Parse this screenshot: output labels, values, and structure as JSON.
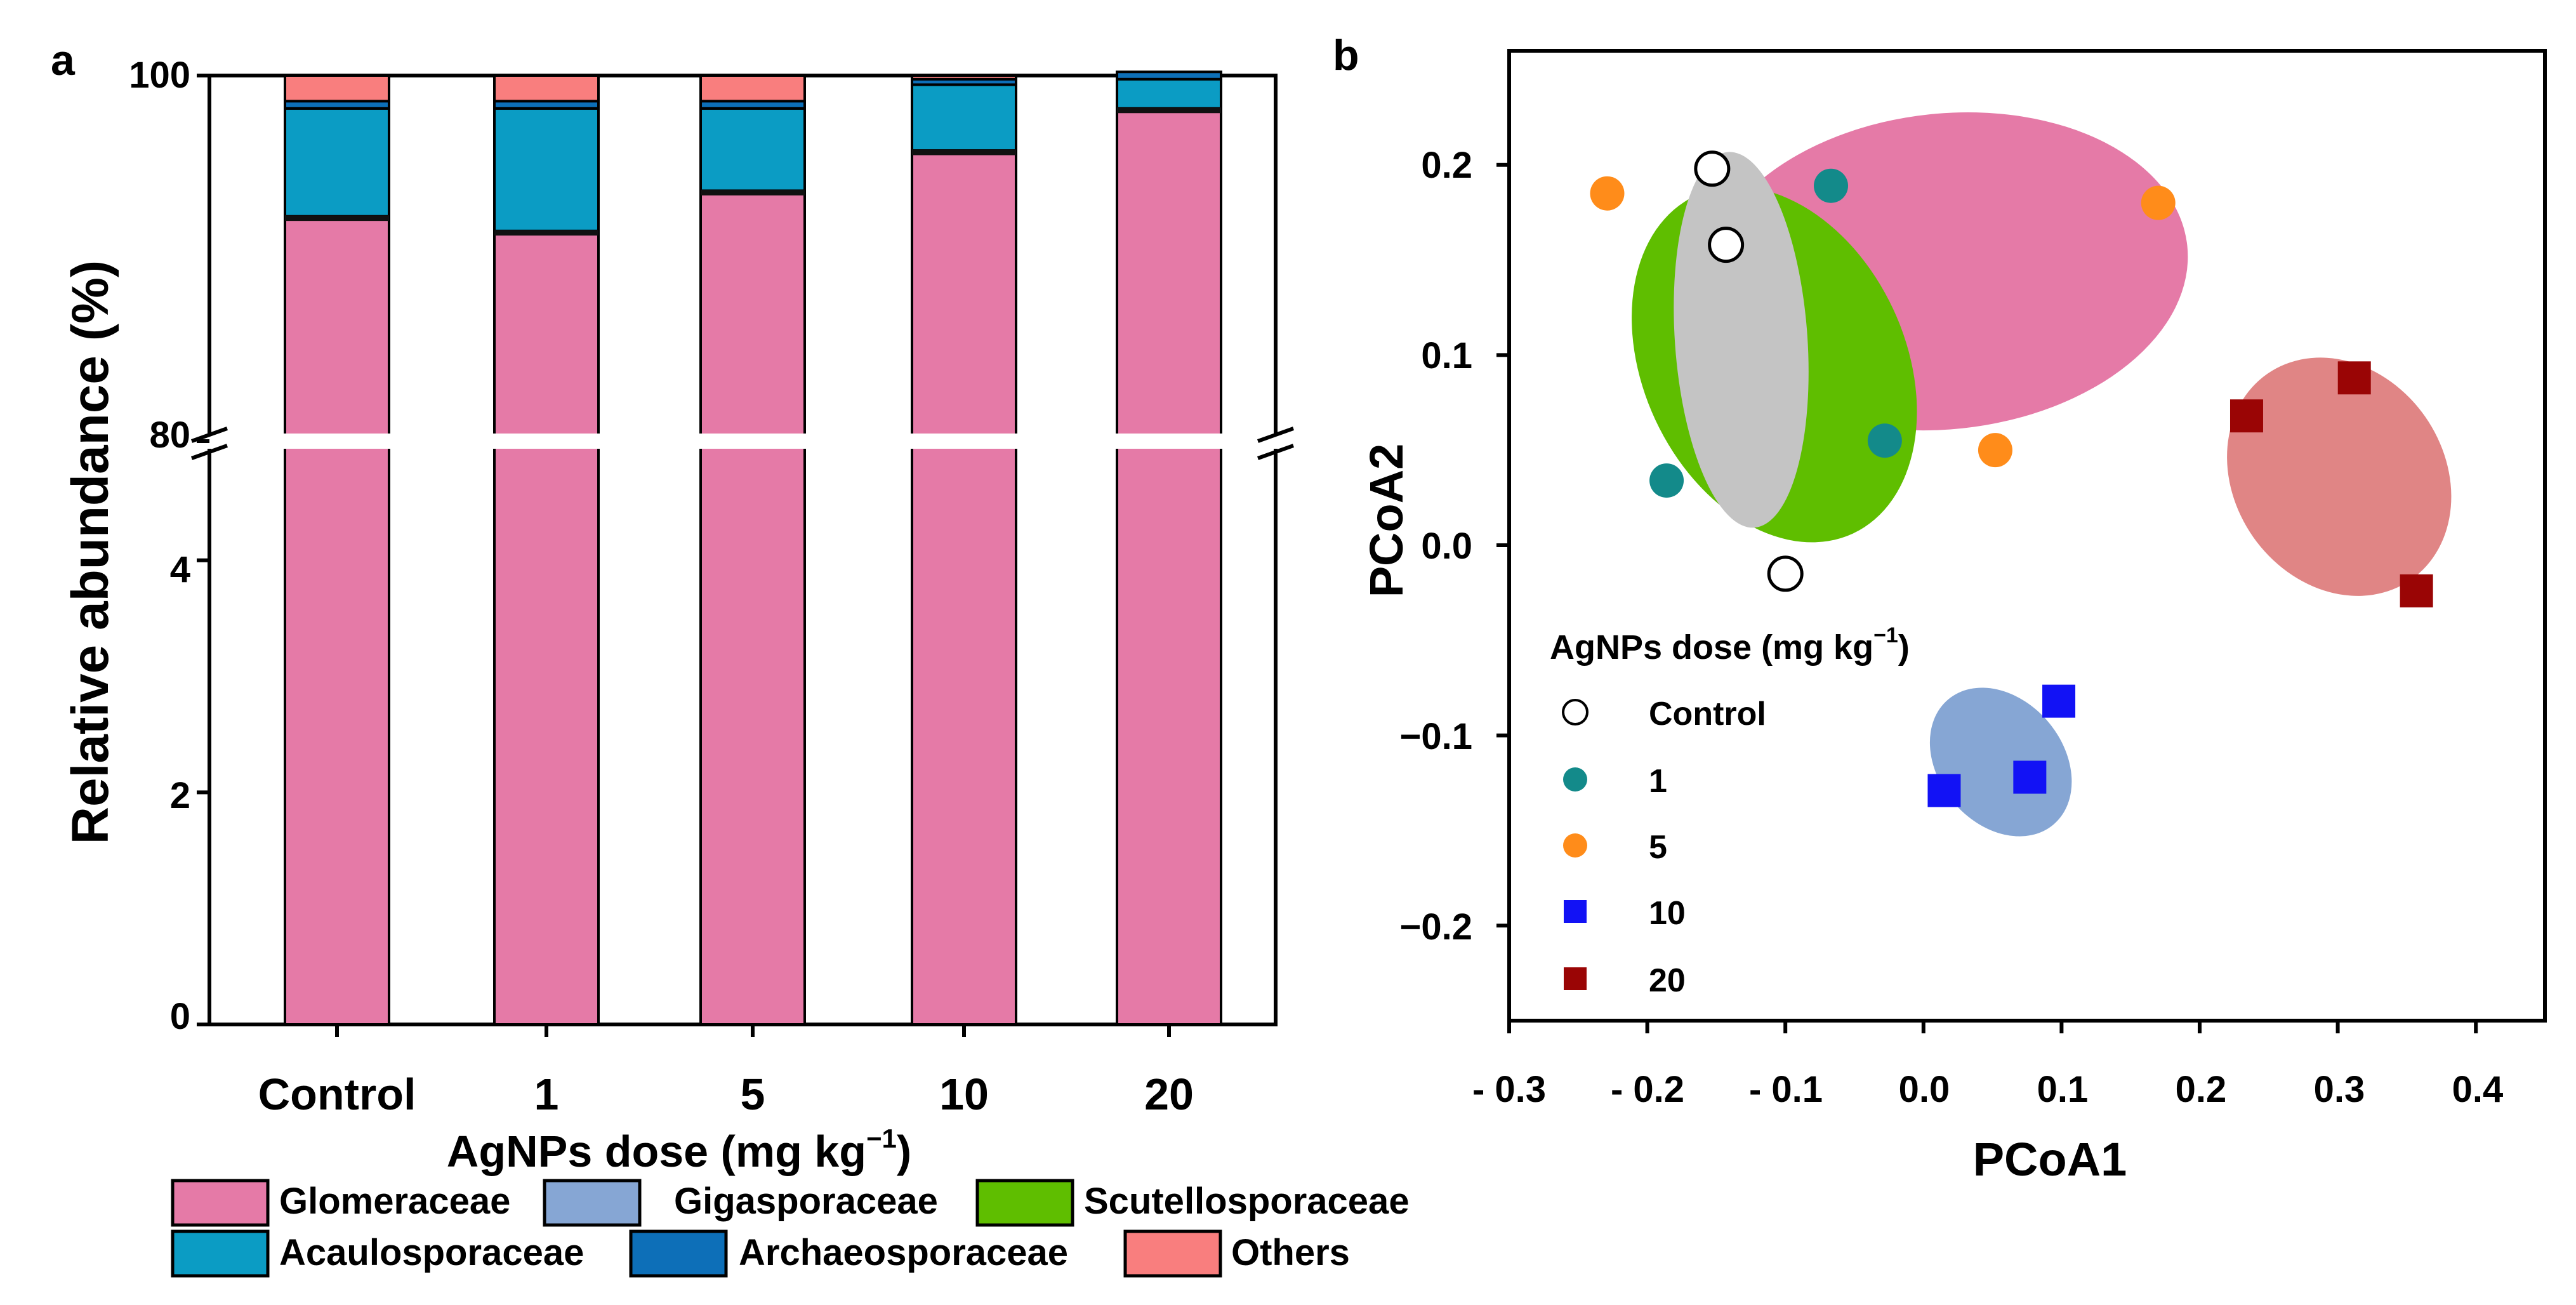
{
  "colors": {
    "Glomeraceae": "#E57AA7",
    "Gigasporaceae": "#86A6D4",
    "Scutellosporaceae": "#5FBE00",
    "Acaulosporaceae": "#0B9CC4",
    "Archaeosporaceae": "#0D6FB8",
    "Others": "#F97E7E",
    "ell_pink": "#E57AA7",
    "ell_green": "#5FBE00",
    "ell_gray": "#C4C4C4",
    "ell_red": "#E08585",
    "ell_blue": "#86A6D4",
    "Control": "#FFFFFF",
    "dose1": "#138A8A",
    "dose5": "#FF8C1A",
    "dose10": "#1212F5",
    "dose20": "#9A0505"
  },
  "chart_data": [
    {
      "type": "bar",
      "panel_label": "a",
      "stacked": true,
      "broken_axis": true,
      "xlabel": "AgNPs dose (mg kg",
      "xlabel_sup": "−1",
      "xlabel_close": ")",
      "ylabel": "Relative abundance (%)",
      "categories": [
        "Control",
        "1",
        "5",
        "10",
        "20"
      ],
      "y_lower_ticks": [
        "0",
        "2",
        "4"
      ],
      "y_upper_ticks": [
        "80",
        "100"
      ],
      "series": [
        {
          "name": "Glomeraceae",
          "values": [
            92.2,
            91.4,
            93.6,
            95.8,
            98.1
          ]
        },
        {
          "name": "Gigasporaceae",
          "values": [
            0.05,
            0.05,
            0.05,
            0.05,
            0.05
          ]
        },
        {
          "name": "Scutellosporaceae",
          "values": [
            0.05,
            0.05,
            0.05,
            0.05,
            0.05
          ]
        },
        {
          "name": "Acaulosporaceae",
          "values": [
            5.9,
            6.7,
            4.5,
            3.6,
            1.6
          ]
        },
        {
          "name": "Archaeosporaceae",
          "values": [
            0.4,
            0.4,
            0.4,
            0.3,
            0.4
          ]
        },
        {
          "name": "Others",
          "values": [
            1.4,
            1.4,
            1.4,
            0.2,
            -0.2
          ]
        }
      ],
      "legend": [
        "Glomeraceae",
        "Gigasporaceae",
        "Scutellosporaceae",
        "Acaulosporaceae",
        "Archaeosporaceae",
        "Others"
      ]
    },
    {
      "type": "scatter",
      "panel_label": "b",
      "xlabel": "PCoA1",
      "ylabel": "PCoA2",
      "xlim": [
        -0.3,
        0.45
      ],
      "ylim": [
        -0.25,
        0.26
      ],
      "x_ticks": [
        "- 0.3",
        "- 0.2",
        "- 0.1",
        "0.0",
        "0.1",
        "0.2",
        "0.3",
        "0.4"
      ],
      "y_ticks": [
        "0.2",
        "0.1",
        "0.0",
        "−0.1",
        "−0.2"
      ],
      "legend_title": "AgNPs dose (mg kg",
      "legend_title_sup": "−1",
      "legend_title_close": ")",
      "series": [
        {
          "name": "Control",
          "marker": "circle-open",
          "points": [
            [
              -0.153,
              0.198
            ],
            [
              -0.143,
              0.158
            ],
            [
              -0.1,
              -0.015
            ]
          ]
        },
        {
          "name": "1",
          "marker": "circle",
          "points": [
            [
              -0.067,
              0.189
            ],
            [
              -0.186,
              0.034
            ],
            [
              -0.028,
              0.055
            ]
          ]
        },
        {
          "name": "5",
          "marker": "circle",
          "points": [
            [
              -0.229,
              0.185
            ],
            [
              0.17,
              0.18
            ],
            [
              0.052,
              0.05
            ]
          ]
        },
        {
          "name": "10",
          "marker": "square",
          "points": [
            [
              0.015,
              -0.129
            ],
            [
              0.098,
              -0.082
            ],
            [
              0.077,
              -0.122
            ]
          ]
        },
        {
          "name": "20",
          "marker": "square",
          "points": [
            [
              0.234,
              0.068
            ],
            [
              0.312,
              0.088
            ],
            [
              0.357,
              -0.024
            ]
          ]
        }
      ],
      "ellipses": [
        {
          "group": "5",
          "cx": 0.016,
          "cy": 0.144,
          "rx": 0.176,
          "ry": 0.083,
          "angle": -6,
          "color_key": "ell_pink"
        },
        {
          "group": "1",
          "cx": -0.108,
          "cy": 0.095,
          "rx": 0.095,
          "ry": 0.098,
          "angle": -25,
          "color_key": "ell_green"
        },
        {
          "group": "Control",
          "cx": -0.132,
          "cy": 0.108,
          "rx": 0.048,
          "ry": 0.099,
          "angle": -4,
          "color_key": "ell_gray"
        },
        {
          "group": "20",
          "cx": 0.301,
          "cy": 0.036,
          "rx": 0.076,
          "ry": 0.066,
          "angle": -35,
          "color_key": "ell_red"
        },
        {
          "group": "10",
          "cx": 0.056,
          "cy": -0.114,
          "rx": 0.045,
          "ry": 0.043,
          "angle": -40,
          "color_key": "ell_blue"
        }
      ]
    }
  ]
}
